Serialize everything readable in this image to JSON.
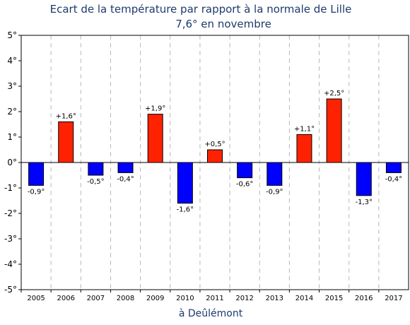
{
  "chart_data": {
    "type": "bar",
    "title": "Ecart de la température par rapport à la normale de Lille",
    "subtitle": "7,6° en novembre",
    "xlabel": "à Deûlémont",
    "ylabel": "",
    "ylim": [
      -5,
      5
    ],
    "yticks": [
      5,
      4,
      3,
      2,
      1,
      0,
      -1,
      -2,
      -3,
      -4,
      -5
    ],
    "ytick_labels": [
      "5°",
      "4°",
      "3°",
      "2°",
      "1°",
      "0°",
      "-1°",
      "-2°",
      "-3°",
      "-4°",
      "-5°"
    ],
    "grid": "vertical-dashed",
    "categories": [
      "2005",
      "2006",
      "2007",
      "2008",
      "2009",
      "2010",
      "2011",
      "2012",
      "2013",
      "2014",
      "2015",
      "2016",
      "2017"
    ],
    "values": [
      -0.9,
      1.6,
      -0.5,
      -0.4,
      1.9,
      -1.6,
      0.5,
      -0.6,
      -0.9,
      1.1,
      2.5,
      -1.3,
      -0.4
    ],
    "data_labels": [
      "-0,9°",
      "+1,6°",
      "-0,5°",
      "-0,4°",
      "+1,9°",
      "-1,6°",
      "+0,5°",
      "-0,6°",
      "-0,9°",
      "+1,1°",
      "+2,5°",
      "-1,3°",
      "-0,4°"
    ],
    "colors": {
      "positive": "#ff2200",
      "negative": "#0000ff",
      "text": "#1f3a6b"
    }
  }
}
